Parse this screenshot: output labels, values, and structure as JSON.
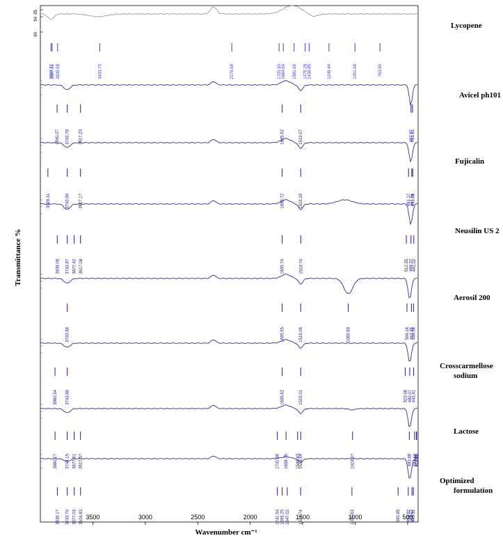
{
  "chart_data": {
    "type": "line",
    "title": "",
    "xlabel": "Wavenumber cm⁻¹",
    "ylabel": "Transmittance %",
    "xlim": [
      4000,
      400
    ],
    "x_ticks": [
      3500,
      3000,
      2500,
      2000,
      1500,
      1000,
      500
    ],
    "top_y_ticks": [
      "95",
      "94",
      "90"
    ],
    "series": [
      {
        "name": "Lycopene",
        "color": "#9a9a9a",
        "peaks": [
          "3898.22",
          "3887.91",
          "3835.58",
          "3433.70",
          "2175.59",
          "1725.30",
          "1684.69",
          "1581.69",
          "1476.28",
          "1438.85",
          "1249.44",
          "1001.69",
          "763.50"
        ]
      },
      {
        "name": "Avicel ph101",
        "color": "#2e2e8a",
        "peaks": [
          "3840.27",
          "3743.78",
          "3617.23",
          "1695.92",
          "1519.07",
          "467.57",
          "453.51"
        ]
      },
      {
        "name": "Fujicalin",
        "color": "#2e2e8a",
        "peaks": [
          "3928.11",
          "3743.69",
          "3617.17",
          "1695.72",
          "1519.29",
          "491.17",
          "461.01",
          "451.06"
        ]
      },
      {
        "name": "Neusilin US 2",
        "color": "#2e2e8a",
        "peaks": [
          "3839.06",
          "3743.87",
          "3677.42",
          "3617.08",
          "1695.74",
          "1518.70",
          "512.55",
          "468.07",
          "441.02"
        ]
      },
      {
        "name": "Aerosil 200",
        "color": "#2e2e8a",
        "peaks": [
          "3743.88",
          "1695.95",
          "1519.08",
          "1065.69",
          "506.18",
          "463.85",
          "444.06"
        ]
      },
      {
        "name": "Crosscarmellose sodium",
        "color": "#2e2e8a",
        "peaks": [
          "3860.54",
          "3743.88",
          "1695.62",
          "1519.01",
          "523.06",
          "480.07",
          "443.41"
        ]
      },
      {
        "name": "Lactose",
        "color": "#2e2e8a",
        "peaks": [
          "3860.17",
          "3744.15",
          "3677.81",
          "3617.57",
          "1741.86",
          "1658.75",
          "1548.43",
          "1518.94",
          "1024.97",
          "433.64",
          "483.88",
          "416.88",
          "413.96"
        ]
      },
      {
        "name": "Optimized formulation",
        "color": "#2e2e8a",
        "peaks": [
          "3838.17",
          "3743.70",
          "3677.03",
          "3616.83",
          "1741.54",
          "1695.25",
          "1647.02",
          "1519.74",
          "1030.63",
          "590.85",
          "493.82",
          "458.62",
          "445.11"
        ]
      }
    ]
  }
}
